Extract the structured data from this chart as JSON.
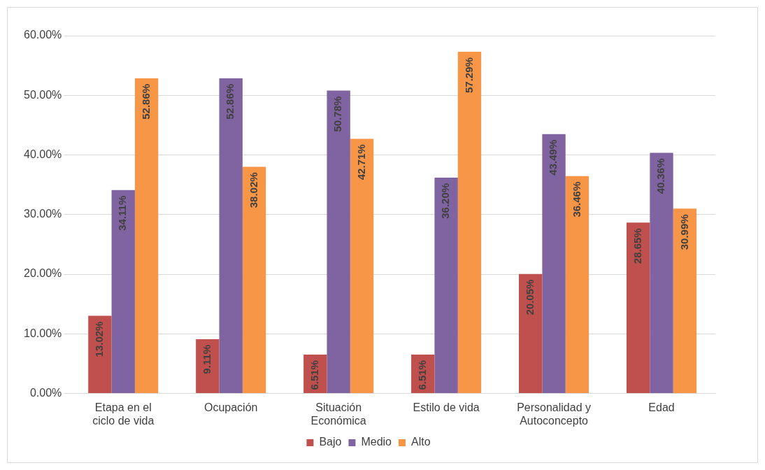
{
  "chart_data": {
    "type": "bar",
    "categories": [
      "Etapa en el ciclo de vida",
      "Ocupación",
      "Situación Económica",
      "Estilo de vida",
      "Personalidad y Autoconcepto",
      "Edad"
    ],
    "series": [
      {
        "name": "Bajo",
        "color": "#c0504d",
        "values": [
          13.02,
          9.11,
          6.51,
          6.51,
          20.05,
          28.65
        ],
        "value_labels": [
          "13.02%",
          "9.11%",
          "6.51%",
          "6.51%",
          "20.05%",
          "28.65%"
        ]
      },
      {
        "name": "Medio",
        "color": "#8064a2",
        "values": [
          34.11,
          52.86,
          50.78,
          36.2,
          43.49,
          40.36
        ],
        "value_labels": [
          "34.11%",
          "52.86%",
          "50.78%",
          "36.20%",
          "43.49%",
          "40.36%"
        ]
      },
      {
        "name": "Alto",
        "color": "#f79646",
        "values": [
          52.86,
          38.02,
          42.71,
          57.29,
          36.46,
          30.99
        ],
        "value_labels": [
          "52.86%",
          "38.02%",
          "42.71%",
          "57.29%",
          "36.46%",
          "30.99%"
        ]
      }
    ],
    "ylim": [
      0,
      60
    ],
    "yticks": [
      {
        "value": 0,
        "label": "0.00%"
      },
      {
        "value": 10,
        "label": "10.00%"
      },
      {
        "value": 20,
        "label": "20.00%"
      },
      {
        "value": 30,
        "label": "30.00%"
      },
      {
        "value": 40,
        "label": "40.00%"
      },
      {
        "value": 50,
        "label": "50.00%"
      },
      {
        "value": 60,
        "label": "60.00%"
      }
    ],
    "grid": "y",
    "legend": "bottom"
  }
}
